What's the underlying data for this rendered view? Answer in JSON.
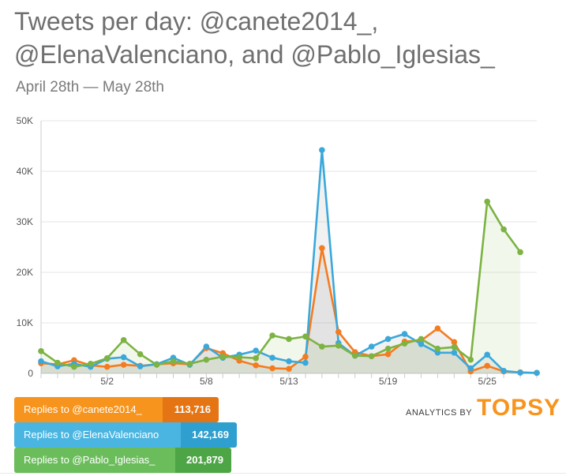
{
  "title": "Tweets per day: @canete2014_, @ElenaValenciano, and @Pablo_Iglesias_",
  "subtitle": "April 28th — May 28th",
  "branding": {
    "by": "ANALYTICS BY",
    "logo": "TOPSY",
    "logo_color": "#f7941d"
  },
  "legend": [
    {
      "label": "Replies to @canete2014_",
      "value": "113,716",
      "color": "#f7941d",
      "value_color": "#e57514"
    },
    {
      "label": "Replies to @ElenaValenciano",
      "value": "142,169",
      "color": "#4ab5e1",
      "value_color": "#2e9fce"
    },
    {
      "label": "Replies to @Pablo_Iglesias_",
      "value": "201,879",
      "color": "#6bbd5b",
      "value_color": "#4ea545"
    }
  ],
  "chart_data": {
    "type": "line",
    "title": "Tweets per day: @canete2014_, @ElenaValenciano, and @Pablo_Iglesias_",
    "xlabel": "",
    "ylabel": "",
    "x": [
      "4/28",
      "4/29",
      "4/30",
      "5/1",
      "5/2",
      "5/3",
      "5/4",
      "5/5",
      "5/6",
      "5/7",
      "5/8",
      "5/9",
      "5/10",
      "5/11",
      "5/12",
      "5/13",
      "5/14",
      "5/15",
      "5/16",
      "5/17",
      "5/18",
      "5/19",
      "5/20",
      "5/21",
      "5/22",
      "5/23",
      "5/24",
      "5/25",
      "5/26",
      "5/27",
      "5/28"
    ],
    "x_ticks": [
      "5/2",
      "5/8",
      "5/13",
      "5/19",
      "5/25"
    ],
    "ylim": [
      0,
      50000
    ],
    "y_ticks": [
      0,
      10000,
      20000,
      30000,
      40000,
      50000
    ],
    "y_tick_labels": [
      "0",
      "10K",
      "20K",
      "30K",
      "40K",
      "50K"
    ],
    "grid": true,
    "series": [
      {
        "name": "Replies to @canete2014_",
        "color": "#f47c20",
        "values": [
          2000,
          1800,
          2600,
          1600,
          1300,
          1700,
          1500,
          1800,
          2000,
          1800,
          5000,
          4000,
          2500,
          1600,
          1000,
          900,
          3300,
          24800,
          8200,
          4200,
          3400,
          3800,
          6300,
          6500,
          8900,
          6200,
          400,
          1500,
          400,
          200,
          100
        ]
      },
      {
        "name": "Replies to @ElenaValenciano",
        "color": "#3aa8db",
        "values": [
          2400,
          1400,
          1900,
          1300,
          2900,
          3200,
          1400,
          1800,
          3100,
          1700,
          5300,
          3100,
          3700,
          4500,
          3100,
          2400,
          2100,
          44200,
          6000,
          3500,
          5300,
          6800,
          7800,
          5800,
          4100,
          4100,
          1000,
          3700,
          500,
          150,
          100
        ]
      },
      {
        "name": "Replies to @Pablo_Iglesias_",
        "color": "#7cb342",
        "values": [
          4400,
          2100,
          1300,
          1900,
          3000,
          6600,
          3800,
          1700,
          2400,
          1900,
          2700,
          3300,
          3200,
          3000,
          7500,
          6800,
          7300,
          5300,
          5500,
          3500,
          3400,
          4900,
          5900,
          6800,
          4900,
          5200,
          2700,
          34000,
          28500,
          24000,
          null
        ]
      }
    ]
  }
}
